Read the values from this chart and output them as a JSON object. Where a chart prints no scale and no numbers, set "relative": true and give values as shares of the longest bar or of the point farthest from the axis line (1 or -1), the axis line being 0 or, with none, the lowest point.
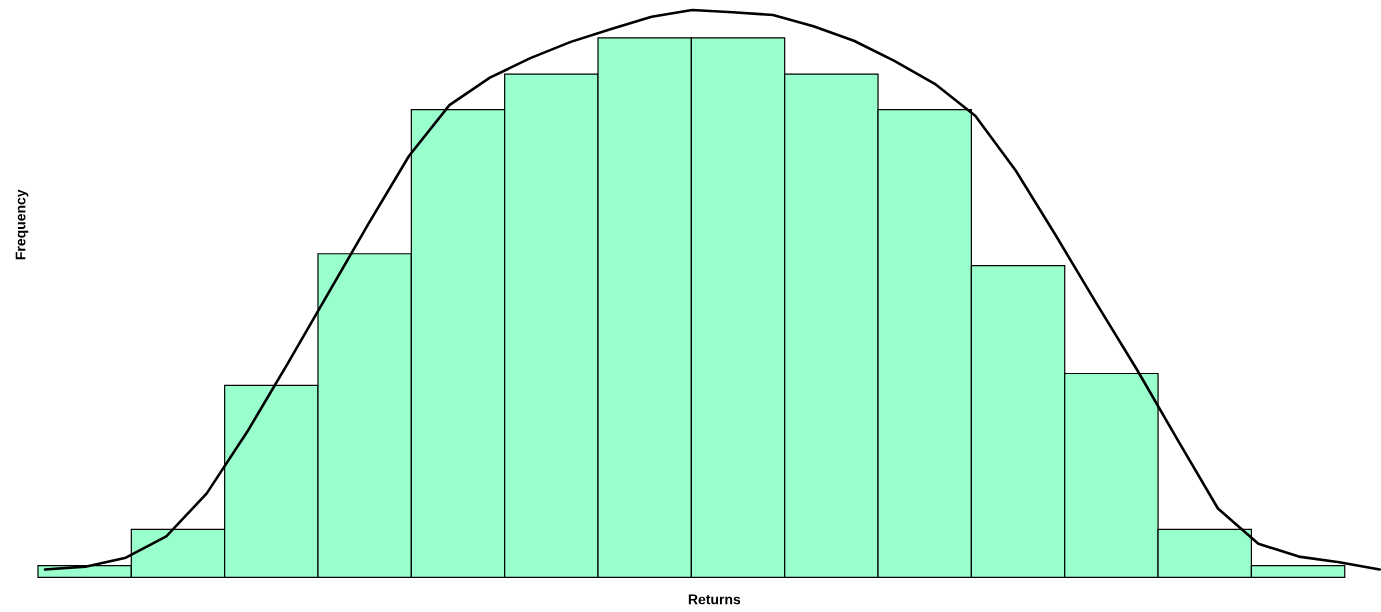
{
  "chart_data": [
    {
      "type": "bar",
      "relative": true,
      "xlabel": "Returns",
      "ylabel": "Frequency",
      "color": "#99ffcc",
      "categories": [
        null,
        null,
        null,
        null,
        null,
        null,
        null,
        null,
        null,
        null,
        null,
        null,
        null,
        null
      ],
      "values": [
        0.022,
        0.089,
        0.356,
        0.6,
        0.867,
        0.933,
        1,
        1,
        0.933,
        0.867,
        0.578,
        0.378,
        0.089,
        0.022
      ]
    },
    {
      "type": "line",
      "relative": true,
      "color": "#000000",
      "categories": [
        null,
        null,
        null,
        null,
        null,
        null,
        null,
        null,
        null,
        null,
        null,
        null,
        null,
        null,
        null,
        null,
        null,
        null,
        null,
        null,
        null,
        null,
        null,
        null,
        null,
        null,
        null,
        null,
        null,
        null,
        null,
        null,
        null,
        null
      ],
      "values": [
        0,
        0.005,
        0.021,
        0.059,
        0.136,
        0.246,
        0.368,
        0.493,
        0.618,
        0.739,
        0.83,
        0.879,
        0.914,
        0.943,
        0.966,
        0.988,
        1,
        0.996,
        0.991,
        0.971,
        0.945,
        0.909,
        0.868,
        0.811,
        0.713,
        0.596,
        0.475,
        0.357,
        0.232,
        0.109,
        0.046,
        0.023,
        0.013,
        0
      ]
    }
  ]
}
